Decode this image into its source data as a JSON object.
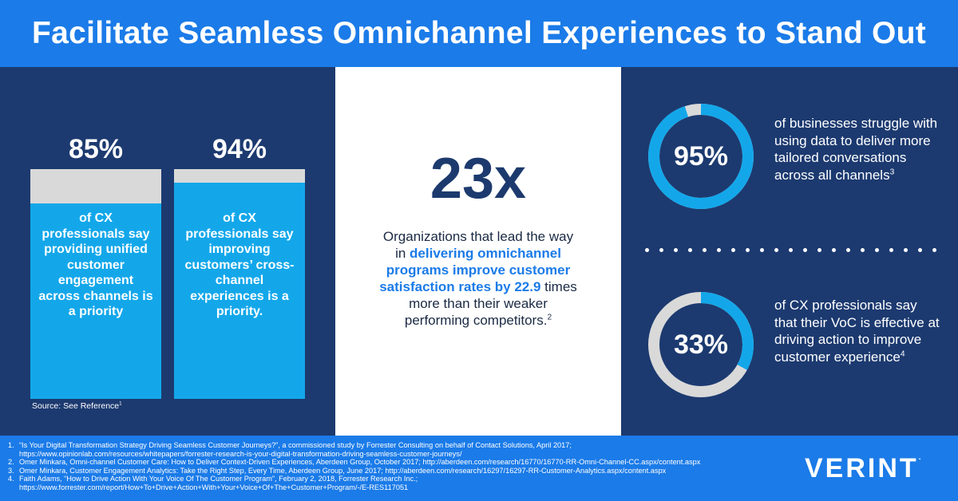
{
  "header": {
    "title": "Facilitate Seamless Omnichannel Experiences to Stand Out"
  },
  "colors": {
    "header_blue": "#1b7be8",
    "navy": "#1c3a70",
    "bar_blue": "#13a7ea",
    "track_gray": "#d9d9d9"
  },
  "bars": [
    {
      "pct": "85%",
      "value": 85,
      "text": "of CX professionals say providing unified customer engagement across channels is a priority"
    },
    {
      "pct": "94%",
      "value": 94,
      "text": "of CX professionals say improving customers’ cross-channel experiences is a priority."
    }
  ],
  "source": "Source: See Reference",
  "source_sup": "1",
  "center": {
    "big": "23x",
    "line1": "Organizations that lead the way",
    "line2_pre": "in ",
    "line2_hl": "delivering omnichannel",
    "line3_hl": "programs improve customer",
    "line4_hl": "satisfaction rates by 22.9",
    "line4_post": " times",
    "line5": "more than their weaker",
    "line6": "performing competitors.",
    "sup": "2"
  },
  "donuts": [
    {
      "label": "95%",
      "value": 95,
      "text": "of businesses struggle with using data to deliver more tailored conversations across all channels",
      "sup": "3"
    },
    {
      "label": "33%",
      "value": 33,
      "text": "of CX professionals say that their VoC is effective at driving action to improve customer experience",
      "sup": "4"
    }
  ],
  "references": [
    {
      "num": "1.",
      "line1": "“Is Your Digital Transformation Strategy Driving Seamless Customer Journeys?”, a commissioned study by Forrester Consulting on behalf of Contact Solutions, April 2017;",
      "line2": "https://www.opinionlab.com/resources/whitepapers/forrester-research-is-your-digital-transformation-driving-seamless-customer-journeys/"
    },
    {
      "num": "2.",
      "line1": "Omer Minkara, Omni-channel Customer Care: How to Deliver Context-Driven Experiences, Aberdeen Group, October 2017; http://aberdeen.com/research/16770/16770-RR-Omni-Channel-CC.aspx/content.aspx",
      "line2": ""
    },
    {
      "num": "3.",
      "line1": "Omer Minkara, Customer Engagement Analytics: Take the Right Step, Every Time, Aberdeen Group, June 2017; http://aberdeen.com/research/16297/16297-RR-Customer-Analytics.aspx/content.aspx",
      "line2": ""
    },
    {
      "num": "4.",
      "line1": "Faith Adams, “How to Drive Action With Your Voice Of The Customer Program”, February 2, 2018, Forrester Research Inc.;",
      "line2": "https://www.forrester.com/report/How+To+Drive+Action+With+Your+Voice+Of+The+Customer+Program/-/E-RES117051"
    }
  ],
  "logo": {
    "text": "VERINT",
    "mark": "."
  }
}
